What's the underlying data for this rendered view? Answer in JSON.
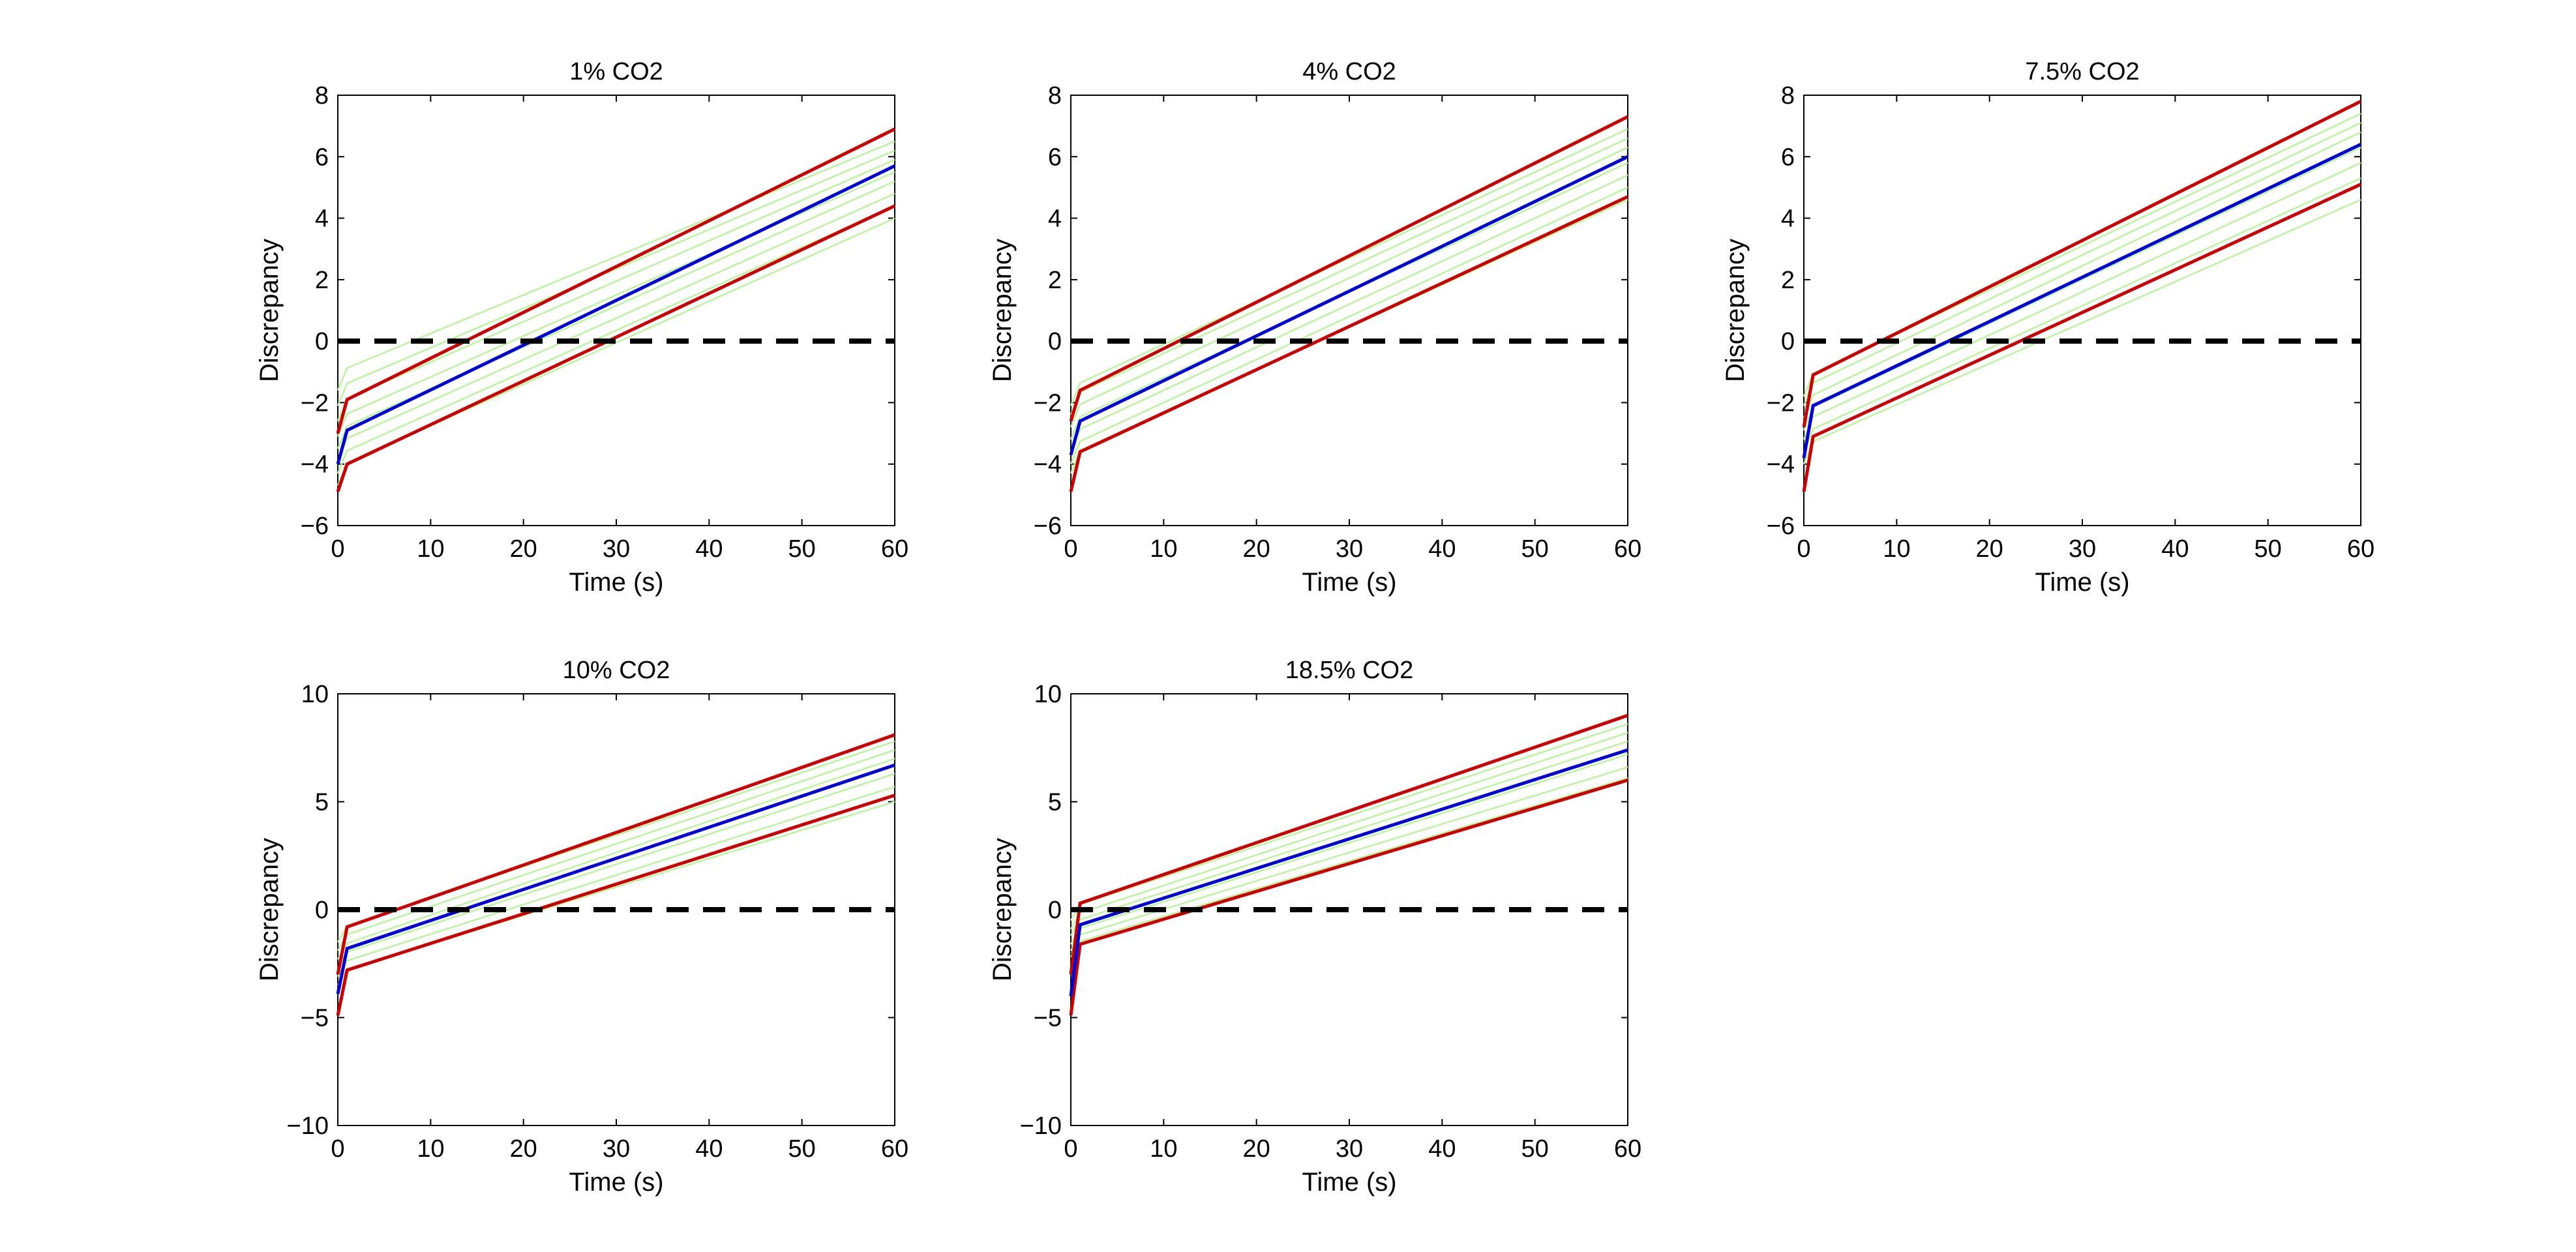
{
  "chart_data": [
    {
      "type": "line",
      "title": "1% CO2",
      "xlabel": "Time (s)",
      "ylabel": "Discrepancy",
      "xlim": [
        0,
        60
      ],
      "ylim": [
        -6,
        8
      ],
      "xticks": [
        0,
        10,
        20,
        30,
        40,
        50,
        60
      ],
      "yticks": [
        -6,
        -4,
        -2,
        0,
        2,
        4,
        6,
        8
      ],
      "xtick_labels": [
        "0",
        "10",
        "20",
        "30",
        "40",
        "50",
        "60"
      ],
      "ytick_labels": [
        "−6",
        "−4",
        "−2",
        "0",
        "2",
        "4",
        "6",
        "8"
      ],
      "reference_line": {
        "y": 0,
        "style": "dashed",
        "color": "#000000"
      },
      "mean": {
        "x": [
          0,
          1,
          60
        ],
        "y": [
          -4.0,
          -2.9,
          5.7
        ]
      },
      "upper": {
        "x": [
          0,
          1,
          60
        ],
        "y": [
          -3.0,
          -1.9,
          6.9
        ]
      },
      "lower": {
        "x": [
          0,
          1,
          60
        ],
        "y": [
          -4.9,
          -4.0,
          4.4
        ]
      },
      "members": {
        "start": [
          -1.0,
          -1.5,
          -2.0,
          -2.5,
          -2.9,
          -3.3,
          -3.7,
          -4.1
        ],
        "end": [
          6.5,
          6.2,
          5.9,
          5.5,
          5.2,
          4.8,
          4.4,
          4.0
        ]
      }
    },
    {
      "type": "line",
      "title": "4% CO2",
      "xlabel": "Time (s)",
      "ylabel": "Discrepancy",
      "xlim": [
        0,
        60
      ],
      "ylim": [
        -6,
        8
      ],
      "xticks": [
        0,
        10,
        20,
        30,
        40,
        50,
        60
      ],
      "yticks": [
        -6,
        -4,
        -2,
        0,
        2,
        4,
        6,
        8
      ],
      "xtick_labels": [
        "0",
        "10",
        "20",
        "30",
        "40",
        "50",
        "60"
      ],
      "ytick_labels": [
        "−6",
        "−4",
        "−2",
        "0",
        "2",
        "4",
        "6",
        "8"
      ],
      "reference_line": {
        "y": 0,
        "style": "dashed",
        "color": "#000000"
      },
      "mean": {
        "x": [
          0,
          1,
          60
        ],
        "y": [
          -3.7,
          -2.6,
          6.0
        ]
      },
      "upper": {
        "x": [
          0,
          1,
          60
        ],
        "y": [
          -2.6,
          -1.6,
          7.3
        ]
      },
      "lower": {
        "x": [
          0,
          1,
          60
        ],
        "y": [
          -4.9,
          -3.6,
          4.7
        ]
      },
      "members": {
        "start": [
          -1.5,
          -1.8,
          -2.2,
          -2.6,
          -3.0,
          -3.4,
          -3.7
        ],
        "end": [
          6.9,
          6.6,
          6.3,
          5.8,
          5.4,
          5.0,
          4.6
        ]
      }
    },
    {
      "type": "line",
      "title": "7.5% CO2",
      "xlabel": "Time (s)",
      "ylabel": "Discrepancy",
      "xlim": [
        0,
        60
      ],
      "ylim": [
        -6,
        8
      ],
      "xticks": [
        0,
        10,
        20,
        30,
        40,
        50,
        60
      ],
      "yticks": [
        -6,
        -4,
        -2,
        0,
        2,
        4,
        6,
        8
      ],
      "xtick_labels": [
        "0",
        "10",
        "20",
        "30",
        "40",
        "50",
        "60"
      ],
      "ytick_labels": [
        "−6",
        "−4",
        "−2",
        "0",
        "2",
        "4",
        "6",
        "8"
      ],
      "reference_line": {
        "y": 0,
        "style": "dashed",
        "color": "#000000"
      },
      "mean": {
        "x": [
          0,
          1,
          60
        ],
        "y": [
          -3.8,
          -2.1,
          6.4
        ]
      },
      "upper": {
        "x": [
          0,
          1,
          60
        ],
        "y": [
          -2.8,
          -1.1,
          7.8
        ]
      },
      "lower": {
        "x": [
          0,
          1,
          60
        ],
        "y": [
          -4.9,
          -3.1,
          5.1
        ]
      },
      "members": {
        "start": [
          -1.2,
          -1.5,
          -1.9,
          -2.3,
          -2.6,
          -3.0,
          -3.4
        ],
        "end": [
          7.4,
          7.1,
          6.8,
          6.3,
          5.8,
          5.3,
          4.6
        ]
      }
    },
    {
      "type": "line",
      "title": "10% CO2",
      "xlabel": "Time (s)",
      "ylabel": "Discrepancy",
      "xlim": [
        0,
        60
      ],
      "ylim": [
        -10,
        10
      ],
      "xticks": [
        0,
        10,
        20,
        30,
        40,
        50,
        60
      ],
      "yticks": [
        -10,
        -5,
        0,
        5,
        10
      ],
      "xtick_labels": [
        "0",
        "10",
        "20",
        "30",
        "40",
        "50",
        "60"
      ],
      "ytick_labels": [
        "−10",
        "−5",
        "0",
        "5",
        "10"
      ],
      "reference_line": {
        "y": 0,
        "style": "dashed",
        "color": "#000000"
      },
      "mean": {
        "x": [
          0,
          1,
          60
        ],
        "y": [
          -3.9,
          -1.8,
          6.7
        ]
      },
      "upper": {
        "x": [
          0,
          1,
          60
        ],
        "y": [
          -3.0,
          -0.8,
          8.1
        ]
      },
      "lower": {
        "x": [
          0,
          1,
          60
        ],
        "y": [
          -4.9,
          -2.8,
          5.3
        ]
      },
      "members": {
        "start": [
          -0.9,
          -1.3,
          -1.7,
          -2.1,
          -2.5,
          -2.9
        ],
        "end": [
          7.8,
          7.4,
          7.0,
          6.3,
          5.7,
          5.0
        ]
      }
    },
    {
      "type": "line",
      "title": "18.5% CO2",
      "xlabel": "Time (s)",
      "ylabel": "Discrepancy",
      "xlim": [
        0,
        60
      ],
      "ylim": [
        -10,
        10
      ],
      "xticks": [
        0,
        10,
        20,
        30,
        40,
        50,
        60
      ],
      "yticks": [
        -10,
        -5,
        0,
        5,
        10
      ],
      "xtick_labels": [
        "0",
        "10",
        "20",
        "30",
        "40",
        "50",
        "60"
      ],
      "ytick_labels": [
        "−10",
        "−5",
        "0",
        "5",
        "10"
      ],
      "reference_line": {
        "y": 0,
        "style": "dashed",
        "color": "#000000"
      },
      "mean": {
        "x": [
          0,
          1,
          60
        ],
        "y": [
          -4.0,
          -0.7,
          7.4
        ]
      },
      "upper": {
        "x": [
          0,
          1,
          60
        ],
        "y": [
          -3.0,
          0.3,
          9.0
        ]
      },
      "lower": {
        "x": [
          0,
          1,
          60
        ],
        "y": [
          -4.9,
          -1.6,
          6.0
        ]
      },
      "members": {
        "start": [
          0.1,
          -0.3,
          -0.6,
          -1.0,
          -1.3,
          -1.6
        ],
        "end": [
          8.6,
          8.2,
          7.8,
          7.2,
          6.6,
          6.1
        ]
      }
    }
  ],
  "colors": {
    "mean": "#0000d8",
    "bounds": "#cc0000",
    "members": "#b9f59d",
    "reference": "#000000",
    "axes": "#000000"
  }
}
